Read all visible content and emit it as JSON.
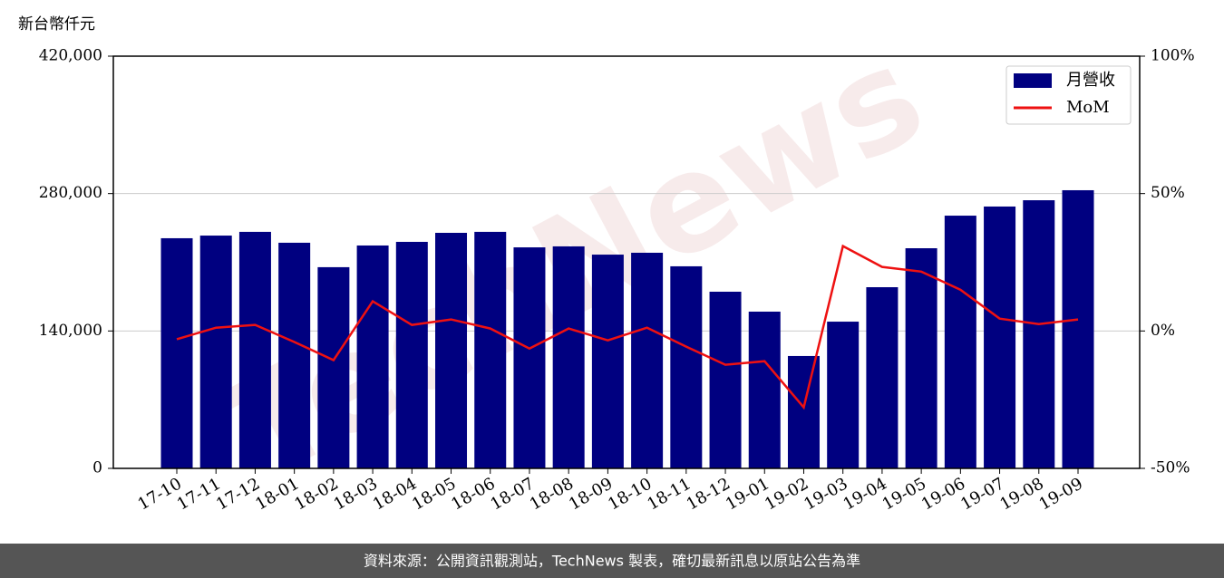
{
  "chart_data": {
    "type": "bar_line",
    "y_label": "新台幣仟元",
    "watermark": "TechNews",
    "categories": [
      "17-10",
      "17-11",
      "17-12",
      "18-01",
      "18-02",
      "18-03",
      "18-04",
      "18-05",
      "18-06",
      "18-07",
      "18-08",
      "18-09",
      "18-10",
      "18-11",
      "18-12",
      "19-01",
      "19-02",
      "19-03",
      "19-04",
      "19-05",
      "19-06",
      "19-07",
      "19-08",
      "19-09"
    ],
    "series": [
      {
        "name": "月營收",
        "type": "bar",
        "color": "#000080",
        "values": [
          234500,
          237200,
          241000,
          229900,
          205000,
          227100,
          230800,
          240000,
          241000,
          225200,
          226200,
          217800,
          219700,
          205900,
          180000,
          159700,
          114500,
          149500,
          184600,
          224300,
          257500,
          266800,
          273200,
          283400
        ]
      },
      {
        "name": "MoM",
        "type": "line",
        "axis": "y2",
        "color": "#ee1111",
        "values": [
          -3.0,
          1.2,
          2.2,
          -4.0,
          -10.6,
          10.8,
          2.2,
          4.2,
          0.9,
          -6.4,
          0.9,
          -3.4,
          1.2,
          -5.7,
          -12.3,
          -11.0,
          -27.8,
          30.9,
          23.3,
          21.6,
          15.0,
          4.5,
          2.5,
          4.2
        ]
      }
    ],
    "ylim": [
      0,
      420000
    ],
    "yticks": [
      0,
      {
        "value": 140000,
        "label": "140,000"
      },
      {
        "value": 280000,
        "label": "280,000"
      },
      {
        "value": 420000,
        "label": "420,000"
      }
    ],
    "y2lim": [
      -50,
      100
    ],
    "y2ticks": [
      {
        "value": -50,
        "label": "-50%"
      },
      {
        "value": 0,
        "label": "0%"
      },
      {
        "value": 50,
        "label": "50%"
      },
      {
        "value": 100,
        "label": "100%"
      }
    ],
    "grid": true,
    "legend": "upper right"
  },
  "footer": "資料來源：公開資訊觀測站，TechNews 製表，確切最新訊息以原站公告為準"
}
